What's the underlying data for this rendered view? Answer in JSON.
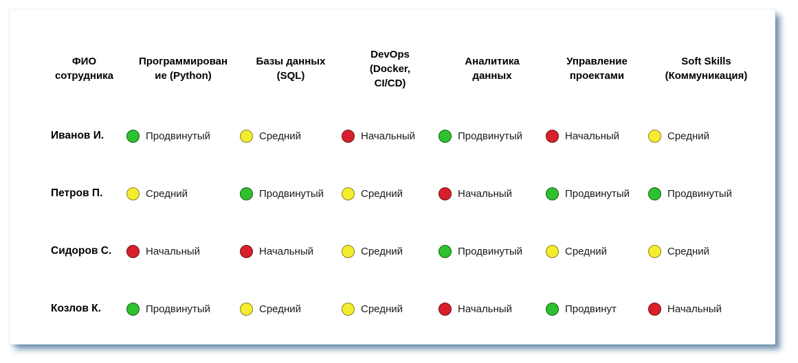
{
  "card": {
    "background": "#ffffff",
    "shadow_color": "#5d87ad"
  },
  "level_colors": {
    "green": "#2fc12f",
    "yellow": "#f4ec2f",
    "red": "#d7202c"
  },
  "table": {
    "headers": [
      "ФИО\nсотрудника",
      "Программирован\nие (Python)",
      "Базы данных\n(SQL)",
      "DevOps\n(Docker,\nCI/CD)",
      "Аналитика\nданных",
      "Управление\nпроектами",
      "Soft Skills\n(Коммуникация)"
    ],
    "rows": [
      {
        "name": "Иванов И.",
        "cells": [
          {
            "level": "green",
            "label": "Продвинутый"
          },
          {
            "level": "yellow",
            "label": "Средний"
          },
          {
            "level": "red",
            "label": "Начальный"
          },
          {
            "level": "green",
            "label": "Продвинутый"
          },
          {
            "level": "red",
            "label": "Начальный"
          },
          {
            "level": "yellow",
            "label": "Средний"
          }
        ]
      },
      {
        "name": "Петров П.",
        "cells": [
          {
            "level": "yellow",
            "label": "Средний"
          },
          {
            "level": "green",
            "label": "Продвинутый"
          },
          {
            "level": "yellow",
            "label": "Средний"
          },
          {
            "level": "red",
            "label": "Начальный"
          },
          {
            "level": "green",
            "label": "Продвинутый"
          },
          {
            "level": "green",
            "label": "Продвинутый"
          }
        ]
      },
      {
        "name": "Сидоров С.",
        "cells": [
          {
            "level": "red",
            "label": "Начальный"
          },
          {
            "level": "red",
            "label": "Начальный"
          },
          {
            "level": "yellow",
            "label": "Средний"
          },
          {
            "level": "green",
            "label": "Продвинутый"
          },
          {
            "level": "yellow",
            "label": "Средний"
          },
          {
            "level": "yellow",
            "label": "Средний"
          }
        ]
      },
      {
        "name": "Козлов К.",
        "cells": [
          {
            "level": "green",
            "label": "Продвинутый"
          },
          {
            "level": "yellow",
            "label": "Средний"
          },
          {
            "level": "yellow",
            "label": "Средний"
          },
          {
            "level": "red",
            "label": "Начальный"
          },
          {
            "level": "green",
            "label": "Продвинут"
          },
          {
            "level": "red",
            "label": "Начальный"
          }
        ]
      }
    ]
  },
  "chart_data": {
    "type": "table",
    "title": "",
    "columns": [
      "ФИО сотрудника",
      "Программирование (Python)",
      "Базы данных (SQL)",
      "DevOps (Docker, CI/CD)",
      "Аналитика данных",
      "Управление проектами",
      "Soft Skills (Коммуникация)"
    ],
    "legend": {
      "green": "Продвинутый",
      "yellow": "Средний",
      "red": "Начальный"
    },
    "rows": [
      {
        "name": "Иванов И.",
        "skills": [
          "Продвинутый",
          "Средний",
          "Начальный",
          "Продвинутый",
          "Начальный",
          "Средний"
        ],
        "colors": [
          "green",
          "yellow",
          "red",
          "green",
          "red",
          "yellow"
        ]
      },
      {
        "name": "Петров П.",
        "skills": [
          "Средний",
          "Продвинутый",
          "Средний",
          "Начальный",
          "Продвинутый",
          "Продвинутый"
        ],
        "colors": [
          "yellow",
          "green",
          "yellow",
          "red",
          "green",
          "green"
        ]
      },
      {
        "name": "Сидоров С.",
        "skills": [
          "Начальный",
          "Начальный",
          "Средний",
          "Продвинутый",
          "Средний",
          "Средний"
        ],
        "colors": [
          "red",
          "red",
          "yellow",
          "green",
          "yellow",
          "yellow"
        ]
      },
      {
        "name": "Козлов К.",
        "skills": [
          "Продвинутый",
          "Средний",
          "Средний",
          "Начальный",
          "Продвинут",
          "Начальный"
        ],
        "colors": [
          "green",
          "yellow",
          "yellow",
          "red",
          "green",
          "red"
        ]
      }
    ]
  }
}
